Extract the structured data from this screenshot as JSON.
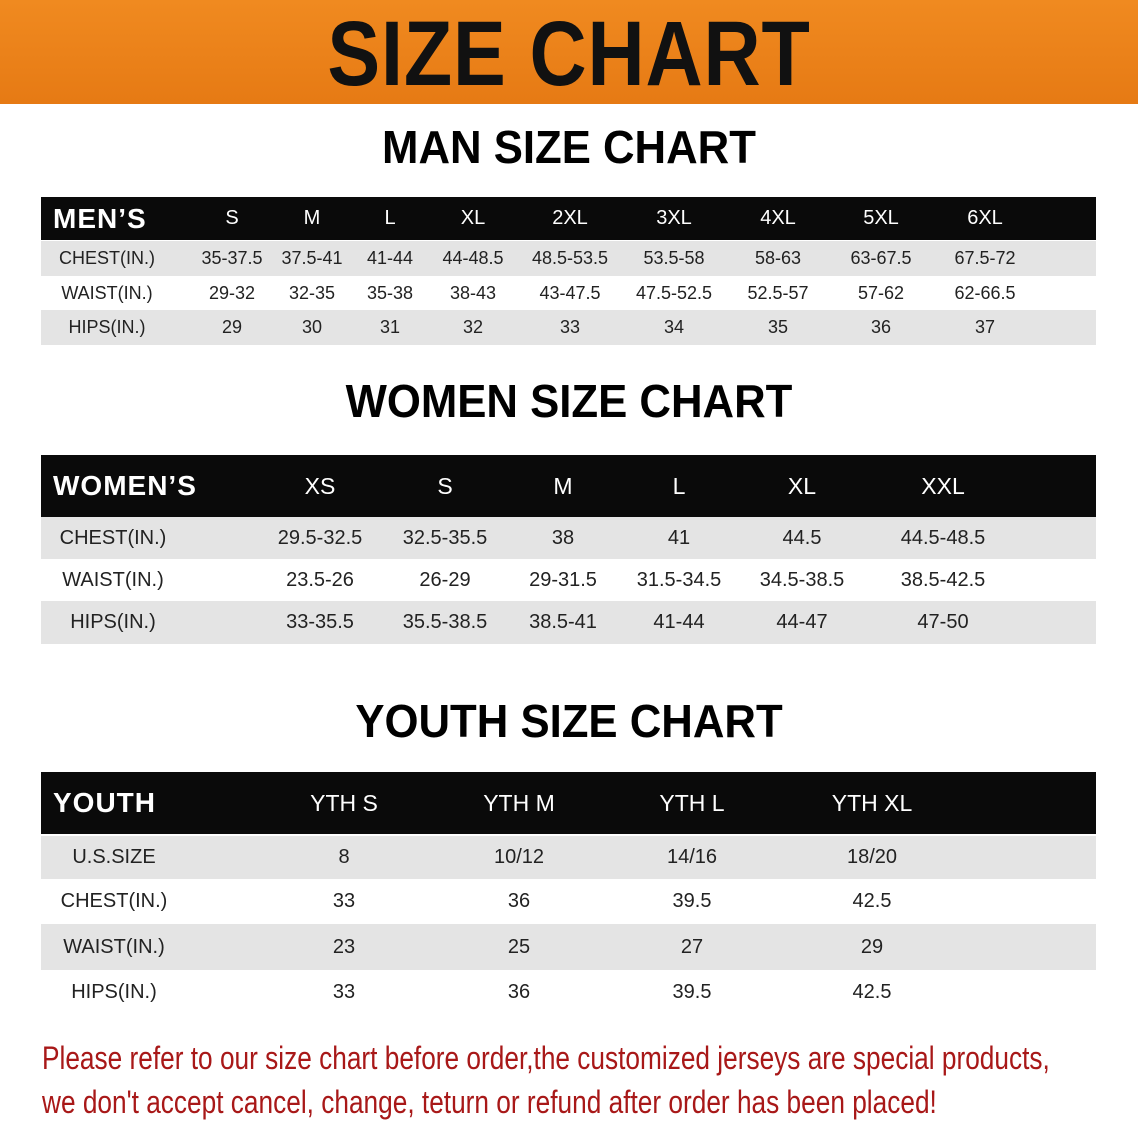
{
  "banner": {
    "title": "SIZE CHART",
    "color": "#e8801a"
  },
  "men": {
    "title": "MAN SIZE CHART",
    "header": "MEN’S",
    "sizes": [
      "S",
      "M",
      "L",
      "XL",
      "2XL",
      "3XL",
      "4XL",
      "5XL",
      "6XL"
    ],
    "rows": [
      {
        "label": "CHEST(IN.)",
        "values": [
          "35-37.5",
          "37.5-41",
          "41-44",
          "44-48.5",
          "48.5-53.5",
          "53.5-58",
          "58-63",
          "63-67.5",
          "67.5-72"
        ]
      },
      {
        "label": "WAIST(IN.)",
        "values": [
          "29-32",
          "32-35",
          "35-38",
          "38-43",
          "43-47.5",
          "47.5-52.5",
          "52.5-57",
          "57-62",
          "62-66.5"
        ]
      },
      {
        "label": "HIPS(IN.)",
        "values": [
          "29",
          "30",
          "31",
          "32",
          "33",
          "34",
          "35",
          "36",
          "37"
        ]
      }
    ]
  },
  "women": {
    "title": "WOMEN SIZE CHART",
    "header": "WOMEN’S",
    "sizes": [
      "XS",
      "S",
      "M",
      "L",
      "XL",
      "XXL"
    ],
    "rows": [
      {
        "label": "CHEST(IN.)",
        "values": [
          "29.5-32.5",
          "32.5-35.5",
          "38",
          "41",
          "44.5",
          "44.5-48.5"
        ]
      },
      {
        "label": "WAIST(IN.)",
        "values": [
          "23.5-26",
          "26-29",
          "29-31.5",
          "31.5-34.5",
          "34.5-38.5",
          "38.5-42.5"
        ]
      },
      {
        "label": "HIPS(IN.)",
        "values": [
          "33-35.5",
          "35.5-38.5",
          "38.5-41",
          "41-44",
          "44-47",
          "47-50"
        ]
      }
    ]
  },
  "youth": {
    "title": "YOUTH SIZE CHART",
    "header": "YOUTH",
    "sizes": [
      "YTH S",
      "YTH M",
      "YTH L",
      "YTH XL"
    ],
    "rows": [
      {
        "label": "U.S.SIZE",
        "values": [
          "8",
          "10/12",
          "14/16",
          "18/20"
        ]
      },
      {
        "label": "CHEST(IN.)",
        "values": [
          "33",
          "36",
          "39.5",
          "42.5"
        ]
      },
      {
        "label": "WAIST(IN.)",
        "values": [
          "23",
          "25",
          "27",
          "29"
        ]
      },
      {
        "label": "HIPS(IN.)",
        "values": [
          "33",
          "36",
          "39.5",
          "42.5"
        ]
      }
    ]
  },
  "notice": {
    "line1": "Please refer to our size chart before order,the customized jerseys are special products,",
    "line2": "we don't accept cancel, change, teturn or refund after order has been placed!",
    "color": "#a81818"
  }
}
